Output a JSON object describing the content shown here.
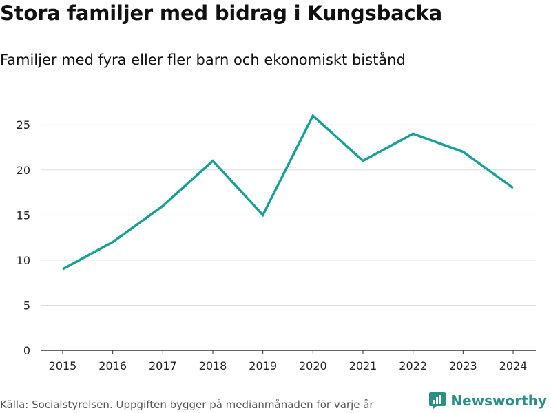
{
  "header": {
    "title": "Stora familjer med bidrag i Kungsbacka",
    "subtitle": "Familjer med fyra eller fler barn och ekonomiskt bistånd"
  },
  "footer": {
    "source": "Källa: Socialstyrelsen. Uppgiften bygger på medianmånaden för varje år",
    "brand": "Newsworthy",
    "brand_color": "#2b8f86",
    "brand_icon": "chart-bubble-icon"
  },
  "colors": {
    "line": "#17a095",
    "grid": "#dddddd",
    "axis": "#333333"
  },
  "chart_data": {
    "type": "line",
    "title": "Stora familjer med bidrag i Kungsbacka",
    "subtitle": "Familjer med fyra eller fler barn och ekonomiskt bistånd",
    "xlabel": "",
    "ylabel": "",
    "x": [
      "2015",
      "2016",
      "2017",
      "2018",
      "2019",
      "2020",
      "2021",
      "2022",
      "2023",
      "2024"
    ],
    "series": [
      {
        "name": "Familjer med fyra eller fler barn och ekonomiskt bistånd",
        "values": [
          9,
          12,
          16,
          21,
          15,
          26,
          21,
          24,
          22,
          18
        ]
      }
    ],
    "yticks": [
      0,
      5,
      10,
      15,
      20,
      25
    ],
    "ylim": [
      0,
      27
    ],
    "grid": true,
    "legend": "none"
  }
}
